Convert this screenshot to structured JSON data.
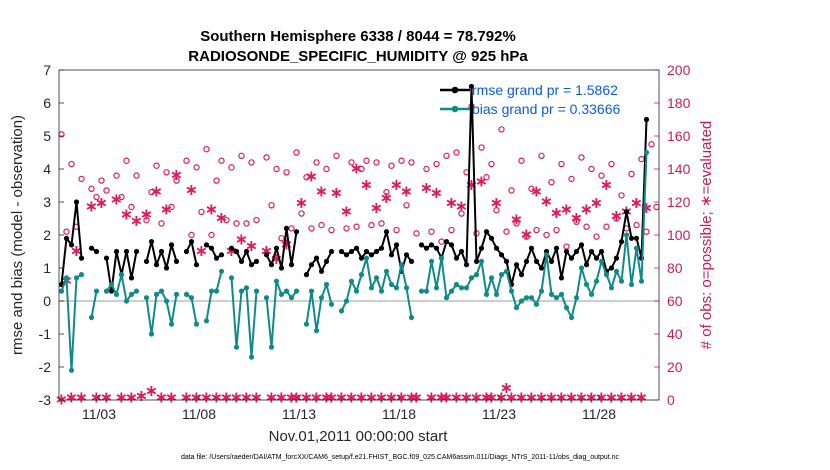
{
  "chart_data": {
    "type": "line",
    "title": "Southern Hemisphere 6338 / 8044 = 78.792%",
    "subtitle": "RADIOSONDE_SPECIFIC_HUMIDITY @ 925 hPa",
    "xlabel": "Nov.01,2011 00:00:00 start",
    "ylabel": "rmse and bias (model - observation)",
    "ylabel_right": "# of obs: o=possible; ∗=evaluated",
    "footnote": "data file: /Users/raeder/DAI/ATM_forcXX/CAM6_setup/f.e21.FHIST_BGC.f09_025.CAM6assim.011/Diags_NTrS_2011-11/obs_diag_output.nc",
    "ylim": [
      -3,
      7
    ],
    "ylim_right": [
      0,
      200
    ],
    "xlim": [
      1,
      31
    ],
    "yticks": [
      "-3",
      "-2",
      "-1",
      "0",
      "1",
      "2",
      "3",
      "4",
      "5",
      "6",
      "7"
    ],
    "yticks_right": [
      "0",
      "20",
      "40",
      "60",
      "80",
      "100",
      "120",
      "140",
      "160",
      "180",
      "200"
    ],
    "xtick_labels": [
      "11/03",
      "11/08",
      "11/13",
      "11/18",
      "11/23",
      "11/28"
    ],
    "xtick_days": [
      3,
      8,
      13,
      18,
      23,
      28
    ],
    "legend_position": "top-right",
    "colors": {
      "rmse": "#000000",
      "bias": "#118a8a",
      "obs": "#dd1a5c",
      "zero": "#b0b0b0"
    },
    "x_days": [
      1.125,
      1.375,
      1.625,
      1.875,
      2.125,
      2.375,
      2.625,
      2.875,
      3.125,
      3.375,
      3.625,
      3.875,
      4.125,
      4.375,
      4.625,
      4.875,
      5.125,
      5.375,
      5.625,
      5.875,
      6.125,
      6.375,
      6.625,
      6.875,
      7.125,
      7.375,
      7.625,
      7.875,
      8.125,
      8.375,
      8.625,
      8.875,
      9.125,
      9.375,
      9.625,
      9.875,
      10.125,
      10.375,
      10.625,
      10.875,
      11.125,
      11.375,
      11.625,
      11.875,
      12.125,
      12.375,
      12.625,
      12.875,
      13.125,
      13.375,
      13.625,
      13.875,
      14.125,
      14.375,
      14.625,
      14.875,
      15.125,
      15.375,
      15.625,
      15.875,
      16.125,
      16.375,
      16.625,
      16.875,
      17.125,
      17.375,
      17.625,
      17.875,
      18.125,
      18.375,
      18.625,
      18.875,
      19.125,
      19.375,
      19.625,
      19.875,
      20.125,
      20.375,
      20.625,
      20.875,
      21.125,
      21.375,
      21.625,
      21.875,
      22.125,
      22.375,
      22.625,
      22.875,
      23.125,
      23.375,
      23.625,
      23.875,
      24.125,
      24.375,
      24.625,
      24.875,
      25.125,
      25.375,
      25.625,
      25.875,
      26.125,
      26.375,
      26.625,
      26.875,
      27.125,
      27.375,
      27.625,
      27.875,
      28.125,
      28.375,
      28.625,
      28.875,
      29.125,
      29.375,
      29.625,
      29.875,
      30.125,
      30.375,
      30.625,
      30.875
    ],
    "series": [
      {
        "name": "rmse grand pr = 1.5862",
        "key": "rmse",
        "values": [
          0.5,
          1.9,
          1.7,
          3.0,
          1.3,
          null,
          1.6,
          1.5,
          null,
          1.3,
          0.3,
          1.5,
          0.8,
          1.5,
          0.7,
          1.5,
          null,
          1.2,
          1.8,
          1.1,
          1.5,
          1.0,
          1.7,
          1.2,
          null,
          1.5,
          1.8,
          1.1,
          null,
          1.7,
          1.6,
          1.3,
          1.4,
          null,
          1.6,
          1.5,
          1.2,
          1.5,
          1.1,
          1.2,
          null,
          1.4,
          1.1,
          1.6,
          1.0,
          2.2,
          1.1,
          2.1,
          null,
          0.8,
          1.1,
          1.3,
          0.9,
          1.2,
          1.5,
          null,
          1.5,
          1.4,
          1.5,
          1.6,
          1.3,
          1.5,
          1.4,
          1.5,
          1.6,
          2.1,
          1.4,
          1.7,
          0.9,
          1.4,
          1.2,
          null,
          1.7,
          1.6,
          1.7,
          1.6,
          1.3,
          1.8,
          1.7,
          1.3,
          1.5,
          1.1,
          6.5,
          1.2,
          1.6,
          2.1,
          1.9,
          1.6,
          1.4,
          1.2,
          0.5,
          1.1,
          0.8,
          1.2,
          1.6,
          1.2,
          1.0,
          1.5,
          1.2,
          1.6,
          0.7,
          1.5,
          1.3,
          1.5,
          1.7,
          1.1,
          1.5,
          1.3,
          1.5,
          0.9,
          1.0,
          1.3,
          1.8,
          2.7,
          1.9,
          1.9,
          1.3,
          5.5
        ]
      },
      {
        "name": "bias grand pr = 0.33666",
        "key": "bias",
        "values": [
          0.3,
          0.7,
          -2.1,
          0.7,
          0.8,
          null,
          -0.5,
          0.3,
          null,
          0.3,
          0.5,
          0.2,
          0.8,
          0.0,
          0.2,
          0.3,
          null,
          0.1,
          -1.0,
          0.2,
          0.3,
          0.0,
          -0.7,
          0.2,
          null,
          0.2,
          0.1,
          -0.7,
          null,
          -0.6,
          0.3,
          0.3,
          0.9,
          null,
          0.7,
          -1.4,
          0.3,
          0.4,
          -1.7,
          0.3,
          null,
          0.1,
          -1.4,
          0.6,
          0.2,
          0.3,
          0.1,
          0.3,
          null,
          -0.7,
          0.3,
          -0.9,
          0.1,
          0.5,
          -0.1,
          null,
          -0.3,
          0.0,
          0.6,
          0.3,
          0.8,
          1.3,
          0.4,
          0.7,
          0.3,
          0.9,
          0.5,
          0.4,
          1.1,
          0.4,
          -0.5,
          null,
          0.3,
          0.3,
          1.2,
          0.4,
          1.3,
          0.1,
          0.3,
          0.5,
          0.4,
          0.4,
          0.7,
          0.8,
          1.2,
          0.2,
          0.7,
          0.2,
          0.8,
          0.9,
          0.3,
          -0.2,
          0.0,
          0.1,
          0.1,
          -0.1,
          0.3,
          1.4,
          0.2,
          0.1,
          0.2,
          -0.2,
          -0.5,
          0.1,
          1.0,
          0.5,
          0.2,
          0.6,
          1.2,
          0.8,
          0.4,
          0.9,
          0.6,
          2.0,
          0.5,
          1.6,
          0.6,
          4.5
        ]
      },
      {
        "name": "possible",
        "key": "possible",
        "axis": "right",
        "values": [
          161,
          102,
          143,
          105,
          134,
          null,
          128,
          123,
          133,
          127,
          null,
          136,
          123,
          145,
          117,
          136,
          null,
          109,
          126,
          142,
          107,
          138,
          117,
          133,
          null,
          145,
          100,
          141,
          114,
          152,
          100,
          133,
          145,
          109,
          141,
          107,
          148,
          107,
          144,
          109,
          null,
          147,
          118,
          140,
          98,
          138,
          104,
          150,
          113,
          135,
          104,
          144,
          106,
          140,
          103,
          148,
          null,
          104,
          144,
          105,
          140,
          145,
          106,
          144,
          107,
          126,
          142,
          103,
          145,
          118,
          144,
          101,
          null,
          140,
          102,
          143,
          96,
          148,
          103,
          150,
          113,
          138,
          178,
          101,
          153,
          135,
          143,
          115,
          164,
          102,
          127,
          107,
          145,
          99,
          128,
          103,
          148,
          100,
          132,
          103,
          143,
          93,
          134,
          108,
          147,
          105,
          140,
          99,
          136,
          105,
          143,
          110,
          124,
          104,
          137,
          106,
          146,
          102,
          155,
          117
        ]
      },
      {
        "name": "evaluated",
        "key": "evaluated",
        "axis": "right",
        "values": [
          1,
          73,
          2,
          91,
          2,
          null,
          118,
          2,
          120,
          2,
          null,
          122,
          2,
          113,
          2,
          109,
          3,
          113,
          6,
          127,
          2,
          116,
          2,
          137,
          null,
          2,
          128,
          2,
          91,
          2,
          116,
          2,
          111,
          2,
          91,
          2,
          98,
          2,
          94,
          2,
          null,
          91,
          2,
          86,
          2,
          95,
          2,
          2,
          120,
          2,
          136,
          2,
          127,
          2,
          2,
          126,
          2,
          115,
          2,
          141,
          2,
          131,
          2,
          117,
          2,
          123,
          2,
          131,
          2,
          127,
          2,
          2,
          null,
          129,
          2,
          126,
          2,
          2,
          120,
          2,
          118,
          2,
          131,
          2,
          133,
          2,
          2,
          120,
          2,
          8,
          2,
          110,
          2,
          101,
          2,
          127,
          2,
          121,
          2,
          114,
          2,
          116,
          2,
          111,
          2,
          116,
          2,
          120,
          2,
          131,
          2,
          112,
          2,
          115,
          2,
          120,
          2,
          117
        ]
      }
    ]
  }
}
